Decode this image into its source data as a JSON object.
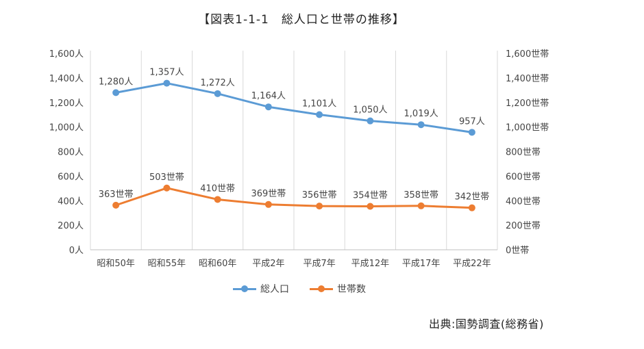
{
  "chart_data": {
    "type": "line",
    "title": "【図表1-1-1　総人口と世帯の推移】",
    "categories": [
      "昭和50年",
      "昭和55年",
      "昭和60年",
      "平成2年",
      "平成7年",
      "平成12年",
      "平成17年",
      "平成22年"
    ],
    "series": [
      {
        "name": "総人口",
        "axis": "left",
        "color": "#5b9bd5",
        "values": [
          1280,
          1357,
          1272,
          1164,
          1101,
          1050,
          1019,
          957
        ],
        "labels": [
          "1,280人",
          "1,357人",
          "1,272人",
          "1,164人",
          "1,101人",
          "1,050人",
          "1,019人",
          "957人"
        ]
      },
      {
        "name": "世帯数",
        "axis": "right",
        "color": "#ed7d31",
        "values": [
          363,
          503,
          410,
          369,
          356,
          354,
          358,
          342
        ],
        "labels": [
          "363世帯",
          "503世帯",
          "410世帯",
          "369世帯",
          "356世帯",
          "354世帯",
          "358世帯",
          "342世帯"
        ]
      }
    ],
    "left_axis": {
      "ylim": [
        0,
        1600
      ],
      "ticks": [
        "0人",
        "200人",
        "400人",
        "600人",
        "800人",
        "1,000人",
        "1,200人",
        "1,400人",
        "1,600人"
      ]
    },
    "right_axis": {
      "ylim": [
        0,
        1600
      ],
      "ticks": [
        "0世帯",
        "200世帯",
        "400世帯",
        "600世帯",
        "800世帯",
        "1,000世帯",
        "1,200世帯",
        "1,400世帯",
        "1,600世帯"
      ]
    },
    "grid": "vertical",
    "legend": "bottom"
  },
  "source": "出典:国勢調査(総務省)"
}
